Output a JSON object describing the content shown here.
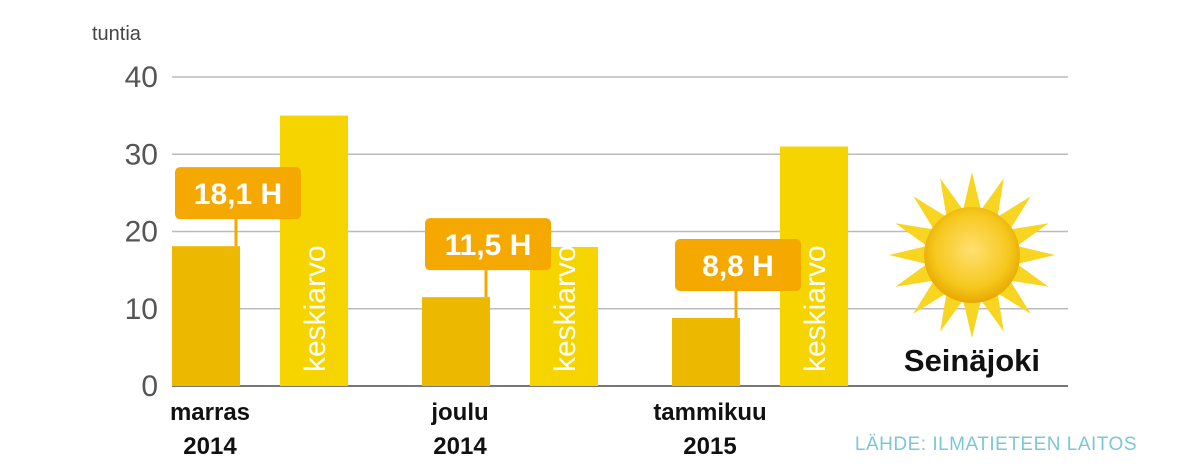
{
  "chart_data": {
    "type": "bar",
    "yunit": "tuntia",
    "ylim": [
      0,
      40
    ],
    "yticks": [
      0,
      10,
      20,
      30,
      40
    ],
    "grid": true,
    "categories": [
      {
        "line1": "marras",
        "line2": "2014"
      },
      {
        "line1": "joulu",
        "line2": "2014"
      },
      {
        "line1": "tammikuu",
        "line2": "2015"
      }
    ],
    "series": [
      {
        "values": [
          18.1,
          11.5,
          8.8
        ],
        "labels": [
          "18,1 H",
          "11,5 H",
          "8,8 H"
        ],
        "color": "#edb800"
      },
      {
        "name": "keskiarvo",
        "values": [
          35,
          18,
          31
        ],
        "color": "#f6d400"
      }
    ],
    "label_color": "#f5a800",
    "annotation": "Seinäjoki",
    "source": "LÄHDE: ILMATIETEEN LAITOS"
  },
  "sun_icon": "sun-icon"
}
